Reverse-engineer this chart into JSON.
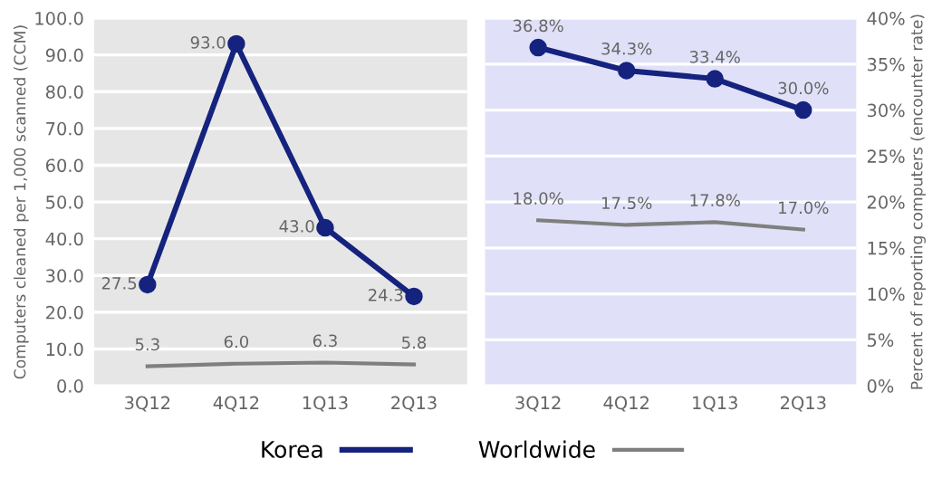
{
  "chart_data": [
    {
      "type": "line",
      "categories": [
        "3Q12",
        "4Q12",
        "1Q13",
        "2Q13"
      ],
      "ylabel": "Computers cleaned per 1,000 scanned (CCM)",
      "ylim": [
        0,
        100
      ],
      "yticks": [
        {
          "value": 0,
          "label": "0.0"
        },
        {
          "value": 10,
          "label": "10.0"
        },
        {
          "value": 20,
          "label": "20.0"
        },
        {
          "value": 30,
          "label": "30.0"
        },
        {
          "value": 40,
          "label": "40.0"
        },
        {
          "value": 50,
          "label": "50.0"
        },
        {
          "value": 60,
          "label": "60.0"
        },
        {
          "value": 70,
          "label": "70.0"
        },
        {
          "value": 80,
          "label": "80.0"
        },
        {
          "value": 90,
          "label": "90.0"
        },
        {
          "value": 100,
          "label": "100.0"
        }
      ],
      "grid": "y",
      "legend": "bottom",
      "series": [
        {
          "name": "Korea",
          "color": "#15237e",
          "marker": "circle",
          "values": [
            27.5,
            93.0,
            43.0,
            24.3
          ],
          "value_labels": [
            "27.5",
            "93.0",
            "43.0",
            "24.3"
          ]
        },
        {
          "name": "Worldwide",
          "color": "#7f7f7f",
          "marker": "none",
          "values": [
            5.3,
            6.0,
            6.3,
            5.8
          ],
          "value_labels": [
            "5.3",
            "6.0",
            "6.3",
            "5.8"
          ]
        }
      ]
    },
    {
      "type": "line",
      "categories": [
        "3Q12",
        "4Q12",
        "1Q13",
        "2Q13"
      ],
      "y2label": "Percent of reporting computers (encounter rate)",
      "y2lim": [
        0,
        40
      ],
      "y2ticks": [
        {
          "value": 0,
          "label": "0%"
        },
        {
          "value": 5,
          "label": "5%"
        },
        {
          "value": 10,
          "label": "10%"
        },
        {
          "value": 15,
          "label": "15%"
        },
        {
          "value": 20,
          "label": "20%"
        },
        {
          "value": 25,
          "label": "25%"
        },
        {
          "value": 30,
          "label": "30%"
        },
        {
          "value": 35,
          "label": "35%"
        },
        {
          "value": 40,
          "label": "40%"
        }
      ],
      "grid": "y",
      "series": [
        {
          "color": "#15237e",
          "marker": "circle",
          "axis": "y2",
          "values": [
            36.8,
            34.3,
            33.4,
            30.0
          ],
          "value_labels": [
            "36.8%",
            "34.3%",
            "33.4%",
            "30.0%"
          ]
        },
        {
          "color": "#7f7f7f",
          "marker": "none",
          "axis": "y2",
          "values": [
            18.0,
            17.5,
            17.8,
            17.0
          ],
          "value_labels": [
            "18.0%",
            "17.5%",
            "17.8%",
            "17.0%"
          ]
        }
      ]
    }
  ]
}
